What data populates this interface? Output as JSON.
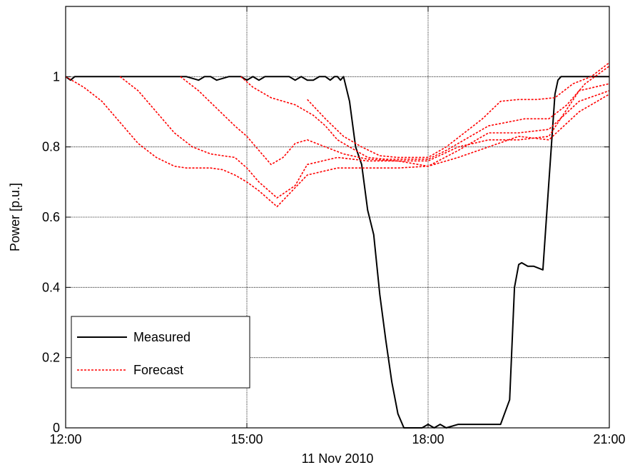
{
  "chart_data": {
    "type": "line",
    "title": "",
    "xlabel": "11 Nov 2010",
    "ylabel": "Power [p.u.]",
    "xlim": [
      0,
      9
    ],
    "ylim": [
      0,
      1.2
    ],
    "x_ticks": [
      {
        "value": 0,
        "label": "12:00"
      },
      {
        "value": 3,
        "label": "15:00"
      },
      {
        "value": 6,
        "label": "18:00"
      },
      {
        "value": 9,
        "label": "21:00"
      }
    ],
    "y_ticks": [
      {
        "value": 0,
        "label": "0"
      },
      {
        "value": 0.2,
        "label": "0.2"
      },
      {
        "value": 0.4,
        "label": "0.4"
      },
      {
        "value": 0.6,
        "label": "0.6"
      },
      {
        "value": 0.8,
        "label": "0.8"
      },
      {
        "value": 1.0,
        "label": "1"
      }
    ],
    "grid": true,
    "legend_position": "bottom-left",
    "legend": [
      {
        "label": "Measured",
        "color": "#000000",
        "dash": "solid"
      },
      {
        "label": "Forecast",
        "color": "#ff0000",
        "dash": "dashed"
      }
    ],
    "series": [
      {
        "name": "Measured",
        "color": "#000000",
        "dash": "solid",
        "x": [
          0,
          0.08,
          0.15,
          0.3,
          0.5,
          1.0,
          1.5,
          1.0,
          2.0,
          2.2,
          2.3,
          2.4,
          2.5,
          2.7,
          2.9,
          3.0,
          3.1,
          3.2,
          3.3,
          3.5,
          3.7,
          3.8,
          3.9,
          4.0,
          4.1,
          4.2,
          4.3,
          4.38,
          4.45,
          4.5,
          4.55,
          4.6,
          4.7,
          4.8,
          4.9,
          5.0,
          5.1,
          5.2,
          5.3,
          5.4,
          5.5,
          5.6,
          5.7,
          5.8,
          5.9,
          6.0,
          6.1,
          6.2,
          6.3,
          6.5,
          6.7,
          7.0,
          7.2,
          7.35,
          7.43,
          7.5,
          7.55,
          7.65,
          7.75,
          7.9,
          8.0,
          8.1,
          8.15,
          8.2,
          8.25,
          8.3,
          8.45,
          8.6,
          8.8,
          9.0
        ],
        "y": [
          1.0,
          0.99,
          1.0,
          1.0,
          1.0,
          1.0,
          1.0,
          1.0,
          1.0,
          0.99,
          1.0,
          1.0,
          0.99,
          1.0,
          1.0,
          0.99,
          1.0,
          0.99,
          1.0,
          1.0,
          1.0,
          0.99,
          1.0,
          0.99,
          0.99,
          1.0,
          1.0,
          0.99,
          1.0,
          1.0,
          0.99,
          1.0,
          0.93,
          0.8,
          0.75,
          0.62,
          0.55,
          0.38,
          0.25,
          0.13,
          0.04,
          0.0,
          0.0,
          0.0,
          0.0,
          0.01,
          0.0,
          0.01,
          0.0,
          0.01,
          0.01,
          0.01,
          0.01,
          0.08,
          0.4,
          0.465,
          0.47,
          0.46,
          0.46,
          0.45,
          0.7,
          0.95,
          0.99,
          1.0,
          1.0,
          1.0,
          1.0,
          1.0,
          1.0,
          1.0
        ]
      },
      {
        "name": "",
        "color": "#ff0000",
        "dash": "dashed",
        "x": [
          0,
          0.3,
          0.6,
          0.9,
          1.2,
          1.5,
          1.8,
          2.0,
          2.2,
          2.4,
          2.6,
          2.8,
          3.0,
          3.2,
          3.5,
          4.0,
          4.5,
          5.0,
          5.5,
          6.0,
          6.5,
          7.0,
          7.5,
          8.0,
          8.5,
          9.0
        ],
        "y": [
          1.0,
          0.97,
          0.93,
          0.87,
          0.81,
          0.77,
          0.745,
          0.74,
          0.74,
          0.74,
          0.735,
          0.72,
          0.7,
          0.675,
          0.63,
          0.72,
          0.74,
          0.74,
          0.74,
          0.745,
          0.79,
          0.84,
          0.84,
          0.85,
          0.93,
          0.96
        ]
      },
      {
        "name": "",
        "color": "#ff0000",
        "dash": "dashed",
        "x": [
          0.9,
          1.2,
          1.5,
          1.8,
          2.1,
          2.4,
          2.6,
          2.8,
          3.0,
          3.2,
          3.5,
          3.8,
          4.0,
          4.5,
          5.0,
          5.5,
          6.0,
          6.5,
          7.0,
          7.5,
          8.0,
          8.5,
          9.0
        ],
        "y": [
          1.0,
          0.96,
          0.9,
          0.84,
          0.8,
          0.78,
          0.775,
          0.77,
          0.74,
          0.7,
          0.655,
          0.69,
          0.75,
          0.77,
          0.76,
          0.76,
          0.745,
          0.77,
          0.8,
          0.83,
          0.82,
          0.9,
          0.95
        ]
      },
      {
        "name": "",
        "color": "#ff0000",
        "dash": "dashed",
        "x": [
          1.9,
          2.2,
          2.5,
          2.8,
          3.0,
          3.2,
          3.4,
          3.6,
          3.8,
          4.0,
          4.3,
          4.6,
          5.0,
          5.5,
          6.0,
          6.5,
          7.0,
          7.5,
          8.0,
          8.5,
          9.0
        ],
        "y": [
          1.0,
          0.96,
          0.91,
          0.86,
          0.83,
          0.79,
          0.75,
          0.77,
          0.81,
          0.82,
          0.8,
          0.78,
          0.765,
          0.76,
          0.76,
          0.8,
          0.82,
          0.82,
          0.83,
          0.96,
          0.98
        ]
      },
      {
        "name": "",
        "color": "#ff0000",
        "dash": "dashed",
        "x": [
          2.9,
          3.1,
          3.4,
          3.8,
          4.1,
          4.3,
          4.5,
          4.8,
          5.0,
          5.3,
          5.6,
          6.0,
          6.3,
          6.6,
          7.0,
          7.3,
          7.6,
          8.0,
          8.3,
          8.6,
          9.0
        ],
        "y": [
          1.0,
          0.97,
          0.94,
          0.92,
          0.89,
          0.86,
          0.82,
          0.79,
          0.77,
          0.765,
          0.765,
          0.765,
          0.79,
          0.82,
          0.86,
          0.87,
          0.88,
          0.88,
          0.92,
          0.98,
          1.03
        ]
      },
      {
        "name": "",
        "color": "#ff0000",
        "dash": "dashed",
        "x": [
          4.0,
          4.3,
          4.6,
          4.9,
          5.2,
          5.5,
          5.8,
          6.0,
          6.3,
          6.6,
          6.9,
          7.2,
          7.5,
          7.8,
          8.1,
          8.4,
          8.7,
          9.0
        ],
        "y": [
          0.935,
          0.88,
          0.83,
          0.8,
          0.775,
          0.77,
          0.77,
          0.77,
          0.8,
          0.84,
          0.88,
          0.93,
          0.935,
          0.935,
          0.94,
          0.98,
          1.0,
          1.04
        ]
      }
    ]
  }
}
